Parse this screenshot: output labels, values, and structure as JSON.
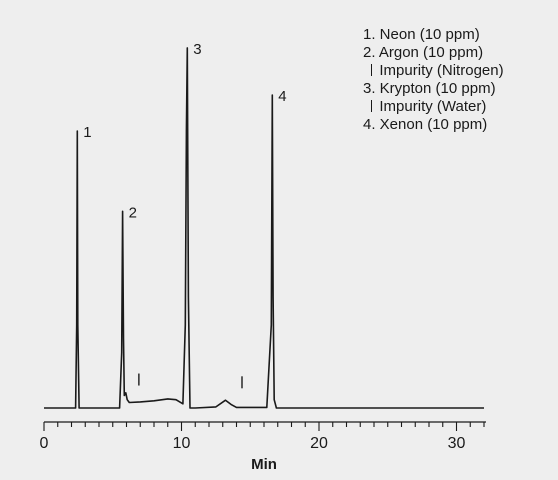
{
  "chart_data": {
    "type": "line",
    "xlabel": "Min",
    "ylabel": "",
    "xlim": [
      0,
      32
    ],
    "ylim": [
      0,
      100
    ],
    "x_ticks": [
      0,
      10,
      20,
      30
    ],
    "minor_tick_step": 1,
    "series": [
      {
        "values_description": "chromatogram trace",
        "x": [
          0,
          2.3,
          2.38,
          2.42,
          2.46,
          2.55,
          5.5,
          5.65,
          5.72,
          5.78,
          5.84,
          5.95,
          6.05,
          6.2,
          7.0,
          8.0,
          9.0,
          9.6,
          10.1,
          10.28,
          10.36,
          10.42,
          10.5,
          10.62,
          11.0,
          12.5,
          13.2,
          13.6,
          14.0,
          15.0,
          16.2,
          16.53,
          16.6,
          16.66,
          16.74,
          16.9,
          20.0,
          32.0
        ],
        "y": [
          0,
          0,
          30,
          100,
          30,
          0,
          0,
          20,
          71,
          25,
          4.5,
          5.5,
          3,
          2,
          2.2,
          2.6,
          3.3,
          3,
          1.5,
          30,
          100,
          130,
          40,
          0,
          0,
          0.4,
          2.8,
          1.3,
          0.2,
          0.2,
          0.2,
          30,
          113,
          40,
          3,
          0,
          0,
          0
        ]
      }
    ],
    "peak_labels": [
      {
        "text": "1",
        "x": 2.42,
        "y": 100
      },
      {
        "text": "2",
        "x": 5.72,
        "y": 71
      },
      {
        "text": "3",
        "x": 10.42,
        "y": 130
      },
      {
        "text": "4",
        "x": 16.6,
        "y": 113
      }
    ],
    "impurity_marks": [
      {
        "x": 6.9,
        "y": 4.5
      },
      {
        "x": 14.4,
        "y": 3.5
      }
    ],
    "legend": {
      "placement": "top-right",
      "entries": [
        {
          "text": "1. Neon (10 ppm)",
          "sub": false
        },
        {
          "text": "2. Argon (10 ppm)",
          "sub": false
        },
        {
          "text": "Impurity (Nitrogen)",
          "sub": true
        },
        {
          "text": "3. Krypton (10 ppm)",
          "sub": false
        },
        {
          "text": "Impurity (Water)",
          "sub": true
        },
        {
          "text": "4. Xenon (10 ppm)",
          "sub": false
        }
      ]
    },
    "grid": false,
    "colors": {
      "trace": "#1a1a1a",
      "background": "#eeeeee"
    }
  }
}
